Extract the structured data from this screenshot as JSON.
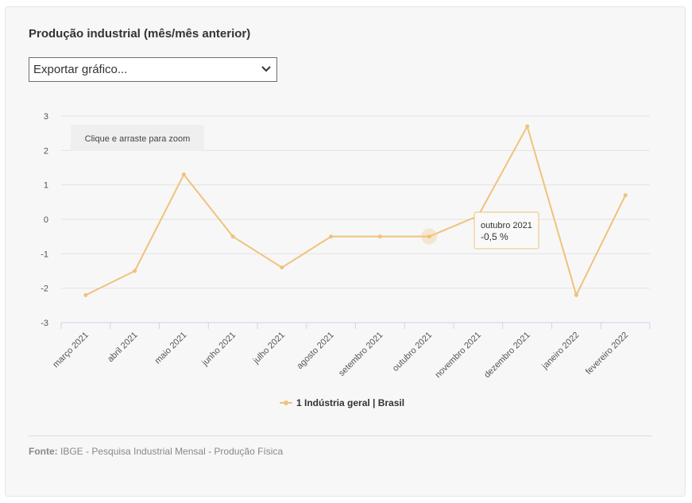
{
  "title": "Produção industrial (mês/mês anterior)",
  "export": {
    "label": "Exportar gráfico..."
  },
  "zoom_hint": "Clique e arraste para zoom",
  "tooltip": {
    "label": "outubro 2021",
    "value": "-0,5 %"
  },
  "source": {
    "label": "Fonte:",
    "text": "IBGE - Pesquisa Industrial Mensal - Produção Física"
  },
  "chart_data": {
    "type": "line",
    "categories": [
      "março 2021",
      "abril 2021",
      "maio 2021",
      "junho 2021",
      "julho 2021",
      "agosto 2021",
      "setembro 2021",
      "outubro 2021",
      "novembro 2021",
      "dezembro 2021",
      "janeiro 2022",
      "fevereiro 2022"
    ],
    "series": [
      {
        "name": "1 Indústria geral | Brasil",
        "values": [
          -2.2,
          -1.5,
          1.3,
          -0.5,
          -1.4,
          -0.5,
          -0.5,
          -0.5,
          0.1,
          2.7,
          -2.2,
          0.7
        ],
        "color": "#f0c27b"
      }
    ],
    "ylim": [
      -3,
      3
    ],
    "yticks": [
      "3",
      "2",
      "1",
      "0",
      "-1",
      "-2",
      "-3"
    ],
    "grid": true,
    "legend": "bottom-center",
    "highlighted_category": "outubro 2021"
  }
}
